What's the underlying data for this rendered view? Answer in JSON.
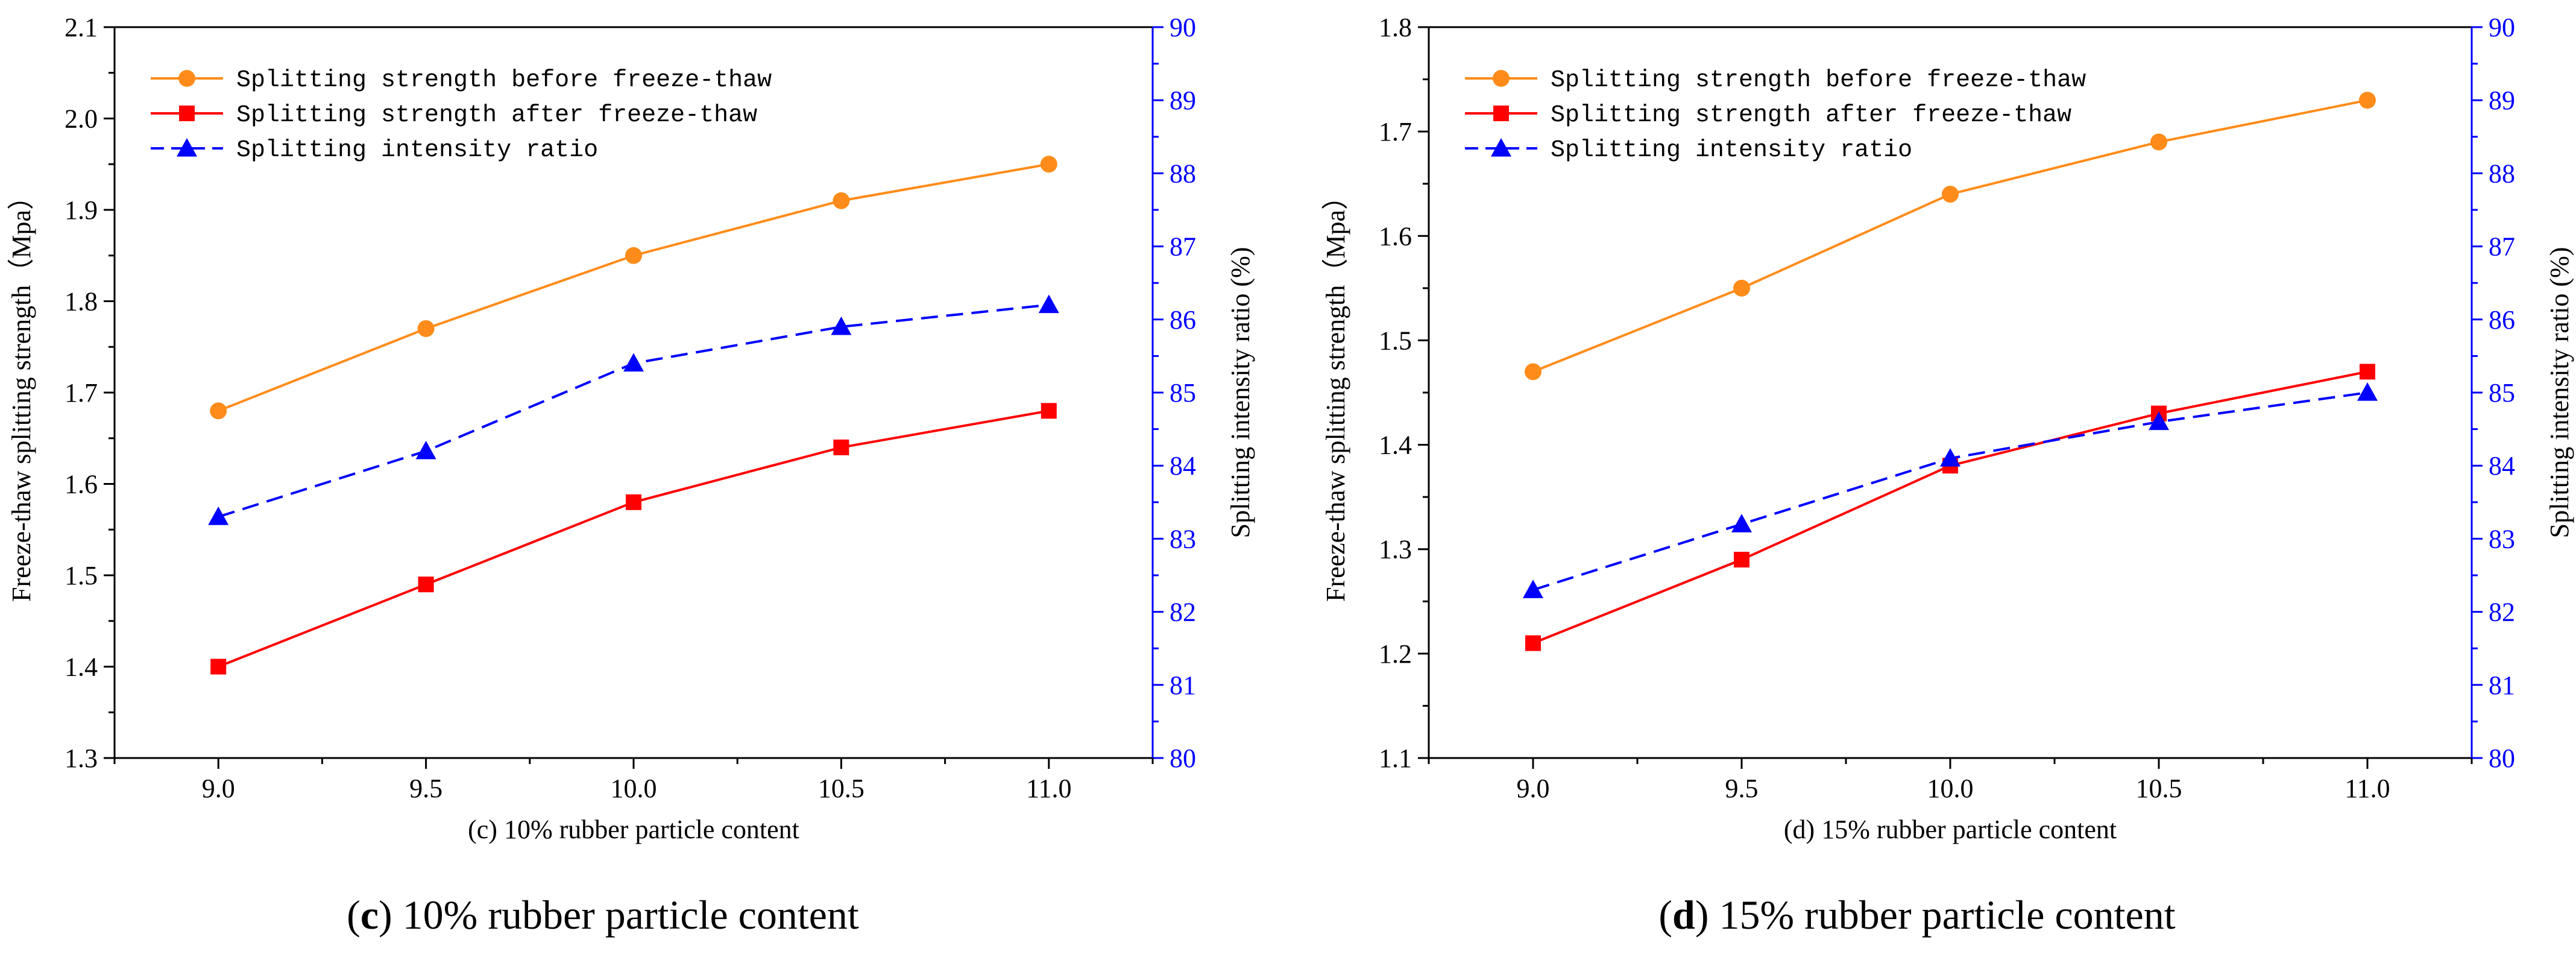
{
  "figure": {
    "captions": [
      {
        "letter": "c",
        "text": " 10% rubber particle content"
      },
      {
        "letter": "d",
        "text": " 15% rubber particle content"
      }
    ]
  },
  "colors": {
    "before": "#ff8c1a",
    "after": "#ff0000",
    "ratio": "#0000ff",
    "axis": "#000000",
    "right_axis": "#0000ff"
  },
  "chart_data": [
    {
      "type": "line",
      "panel": "c",
      "xlabel": "(c) 10% rubber particle content",
      "ylabel": "Freeze-thaw splitting strength（Mpa）",
      "y2label": "Splitting intensity ratio (%)",
      "x": [
        9.0,
        9.5,
        10.0,
        10.5,
        11.0
      ],
      "x_tick_labels": [
        "9.0",
        "9.5",
        "10.0",
        "10.5",
        "11.0"
      ],
      "xlim": [
        8.75,
        11.25
      ],
      "ylim": [
        1.3,
        2.1
      ],
      "y_ticks": [
        1.3,
        1.4,
        1.5,
        1.6,
        1.7,
        1.8,
        1.9,
        2.0,
        2.1
      ],
      "y_tick_labels": [
        "1.3",
        "1.4",
        "1.5",
        "1.6",
        "1.7",
        "1.8",
        "1.9",
        "2.0",
        "2.1"
      ],
      "y2lim": [
        80,
        90
      ],
      "y2_ticks": [
        80,
        81,
        82,
        83,
        84,
        85,
        86,
        87,
        88,
        89,
        90
      ],
      "y2_tick_labels": [
        "80",
        "81",
        "82",
        "83",
        "84",
        "85",
        "86",
        "87",
        "88",
        "89",
        "90"
      ],
      "legend_position": "top-left",
      "series": [
        {
          "name": "Splitting strength before freeze-thaw",
          "axis": "left",
          "marker": "circle",
          "dashed": false,
          "color_key": "before",
          "values": [
            1.68,
            1.77,
            1.85,
            1.91,
            1.95
          ]
        },
        {
          "name": "Splitting strength after freeze-thaw",
          "axis": "left",
          "marker": "square",
          "dashed": false,
          "color_key": "after",
          "values": [
            1.4,
            1.49,
            1.58,
            1.64,
            1.68
          ]
        },
        {
          "name": "Splitting intensity ratio",
          "axis": "right",
          "marker": "triangle",
          "dashed": true,
          "color_key": "ratio",
          "values": [
            83.3,
            84.2,
            85.4,
            85.9,
            86.2
          ]
        }
      ]
    },
    {
      "type": "line",
      "panel": "d",
      "xlabel": "(d) 15% rubber particle content",
      "ylabel": "Freeze-thaw splitting strength（Mpa）",
      "y2label": "Splitting intensity ratio (%)",
      "x": [
        9.0,
        9.5,
        10.0,
        10.5,
        11.0
      ],
      "x_tick_labels": [
        "9.0",
        "9.5",
        "10.0",
        "10.5",
        "11.0"
      ],
      "xlim": [
        8.75,
        11.25
      ],
      "ylim": [
        1.1,
        1.8
      ],
      "y_ticks": [
        1.1,
        1.2,
        1.3,
        1.4,
        1.5,
        1.6,
        1.7,
        1.8
      ],
      "y_tick_labels": [
        "1.1",
        "1.2",
        "1.3",
        "1.4",
        "1.5",
        "1.6",
        "1.7",
        "1.8"
      ],
      "y2lim": [
        80,
        90
      ],
      "y2_ticks": [
        80,
        81,
        82,
        83,
        84,
        85,
        86,
        87,
        88,
        89,
        90
      ],
      "y2_tick_labels": [
        "80",
        "81",
        "82",
        "83",
        "84",
        "85",
        "86",
        "87",
        "88",
        "89",
        "90"
      ],
      "legend_position": "top-left",
      "series": [
        {
          "name": "Splitting strength before freeze-thaw",
          "axis": "left",
          "marker": "circle",
          "dashed": false,
          "color_key": "before",
          "values": [
            1.47,
            1.55,
            1.64,
            1.69,
            1.73
          ]
        },
        {
          "name": "Splitting strength after freeze-thaw",
          "axis": "left",
          "marker": "square",
          "dashed": false,
          "color_key": "after",
          "values": [
            1.21,
            1.29,
            1.38,
            1.43,
            1.47
          ]
        },
        {
          "name": "Splitting intensity ratio",
          "axis": "right",
          "marker": "triangle",
          "dashed": true,
          "color_key": "ratio",
          "values": [
            82.3,
            83.2,
            84.1,
            84.6,
            85.0
          ]
        }
      ]
    }
  ]
}
